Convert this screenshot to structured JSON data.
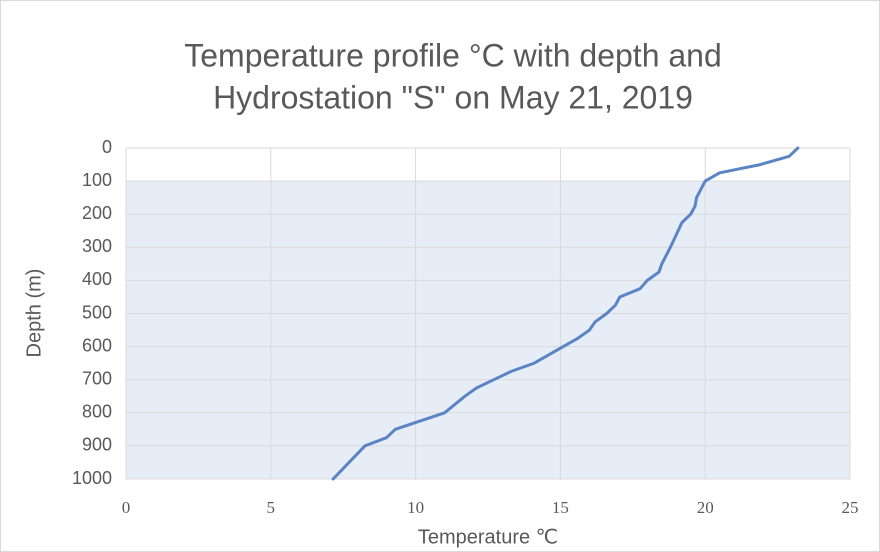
{
  "chart_data": {
    "type": "line",
    "title": [
      "Temperature profile  °C with depth and",
      "Hydrostation \"S\" on May 21, 2019"
    ],
    "x_label": "Temperature ℃",
    "y_label": "Depth (m)",
    "series": [
      {
        "color": "#5b84c4",
        "x": [
          23.2,
          22.9,
          21.9,
          20.5,
          20.0,
          19.7,
          19.65,
          19.5,
          19.2,
          18.8,
          18.5,
          18.4,
          18.0,
          17.75,
          17.05,
          16.9,
          16.6,
          16.2,
          16.0,
          15.6,
          15.1,
          14.1,
          13.3,
          12.7,
          12.1,
          11.7,
          11.0,
          9.3,
          9.0,
          8.25,
          7.7,
          7.15
        ],
        "y": [
          0,
          25,
          50,
          75,
          100,
          150,
          175,
          200,
          225,
          300,
          350,
          375,
          400,
          425,
          450,
          475,
          500,
          525,
          550,
          575,
          600,
          650,
          675,
          700,
          725,
          750,
          800,
          850,
          875,
          900,
          950,
          1000
        ]
      }
    ],
    "band": {
      "ylim": [
        100,
        1000
      ],
      "color": "#e7edf6"
    },
    "xlim": [
      0,
      25
    ],
    "xticks": [
      0,
      5,
      10,
      15,
      20,
      25
    ],
    "ylim": [
      0,
      1000
    ],
    "yticks": [
      0,
      100,
      200,
      300,
      400,
      500,
      600,
      700,
      800,
      900,
      1000
    ],
    "y_inverted": true,
    "grid": true
  }
}
